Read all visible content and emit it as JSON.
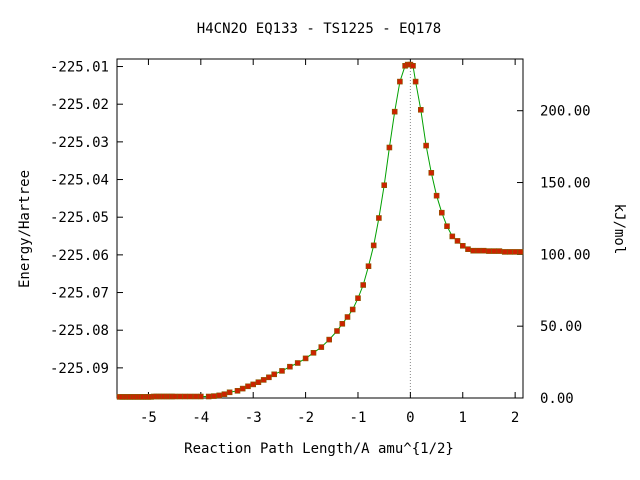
{
  "chart_data": {
    "type": "scatter",
    "title": "H4CN2O   EQ133 - TS1225 - EQ178",
    "xlabel": "Reaction Path Length/A amu^{1/2}",
    "ylabel": "Energy/Hartree",
    "y2label": "kJ/mol",
    "xlim": [
      -5.6,
      2.15
    ],
    "ylim": [
      -225.098,
      -225.008
    ],
    "y2lim": [
      0.0,
      236.0
    ],
    "x_ticks": [
      -5,
      -4,
      -3,
      -2,
      -1,
      0,
      1,
      2
    ],
    "x_tick_labels": [
      "-5",
      "-4",
      "-3",
      "-2",
      "-1",
      "0",
      "1",
      "2"
    ],
    "y_ticks": [
      -225.01,
      -225.02,
      -225.03,
      -225.04,
      -225.05,
      -225.06,
      -225.07,
      -225.08,
      -225.09
    ],
    "y_tick_labels": [
      "-225.01",
      "-225.02",
      "-225.03",
      "-225.04",
      "-225.05",
      "-225.06",
      "-225.07",
      "-225.08",
      "-225.09"
    ],
    "y2_ticks": [
      0,
      50,
      100,
      150,
      200
    ],
    "y2_tick_labels": [
      "0.00",
      "50.00",
      "100.00",
      "150.00",
      "200.00"
    ],
    "grid": false,
    "colors": {
      "line": "#00a000",
      "marker": "#cc2200",
      "marker_edge": "#8a5a00",
      "zero_line": "#888888"
    },
    "series": [
      {
        "x": [
          -5.55,
          -5.5,
          -5.45,
          -5.4,
          -5.35,
          -5.3,
          -5.25,
          -5.2,
          -5.15,
          -5.1,
          -5.05,
          -5.0,
          -4.95,
          -4.9,
          -4.85,
          -4.8,
          -4.75,
          -4.7,
          -4.65,
          -4.6,
          -4.55,
          -4.5,
          -4.4,
          -4.3,
          -4.2,
          -4.1,
          -4.0,
          -3.85,
          -3.75,
          -3.65,
          -3.55,
          -3.45,
          -3.3,
          -3.2,
          -3.1,
          -3.0,
          -2.9,
          -2.8,
          -2.7,
          -2.6,
          -2.45,
          -2.3,
          -2.15,
          -2.0,
          -1.85,
          -1.7,
          -1.55,
          -1.4,
          -1.3,
          -1.2,
          -1.1,
          -1.0,
          -0.9,
          -0.8,
          -0.7,
          -0.6,
          -0.5,
          -0.4,
          -0.3,
          -0.2,
          -0.1,
          -0.05,
          0.0,
          0.05,
          0.1,
          0.2,
          0.3,
          0.4,
          0.5,
          0.6,
          0.7,
          0.8,
          0.9,
          1.0,
          1.1,
          1.2,
          1.3,
          1.4,
          1.5,
          1.6,
          1.7,
          1.8,
          1.9,
          2.0,
          2.1
        ],
        "y": [
          -225.0977,
          -225.0977,
          -225.0977,
          -225.0977,
          -225.0977,
          -225.0977,
          -225.0977,
          -225.0977,
          -225.0977,
          -225.0977,
          -225.0977,
          -225.0977,
          -225.0977,
          -225.0976,
          -225.0976,
          -225.0976,
          -225.0976,
          -225.0976,
          -225.0976,
          -225.0976,
          -225.0976,
          -225.0976,
          -225.0976,
          -225.0976,
          -225.0976,
          -225.0976,
          -225.0976,
          -225.0976,
          -225.0975,
          -225.0973,
          -225.097,
          -225.0965,
          -225.0961,
          -225.0955,
          -225.0949,
          -225.0944,
          -225.0938,
          -225.0932,
          -225.0925,
          -225.0917,
          -225.0908,
          -225.0897,
          -225.0887,
          -225.0875,
          -225.086,
          -225.0845,
          -225.0825,
          -225.0802,
          -225.0783,
          -225.0765,
          -225.0745,
          -225.0715,
          -225.068,
          -225.063,
          -225.0575,
          -225.0502,
          -225.0415,
          -225.0315,
          -225.022,
          -225.014,
          -225.0098,
          -225.0095,
          -225.0095,
          -225.0098,
          -225.014,
          -225.0215,
          -225.031,
          -225.0382,
          -225.0443,
          -225.0488,
          -225.0524,
          -225.0551,
          -225.0563,
          -225.0576,
          -225.0585,
          -225.0589,
          -225.0589,
          -225.0589,
          -225.059,
          -225.059,
          -225.059,
          -225.0592,
          -225.0592,
          -225.0592,
          -225.0592
        ]
      }
    ]
  }
}
